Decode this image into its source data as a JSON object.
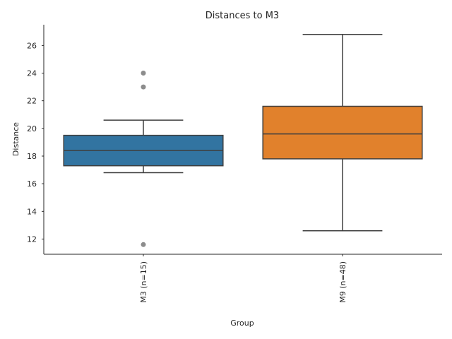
{
  "chart_data": {
    "type": "box",
    "title": "Distances to M3",
    "xlabel": "Group",
    "ylabel": "Distance",
    "ylim": [
      10.9,
      27.5
    ],
    "yticks": [
      12,
      14,
      16,
      18,
      20,
      22,
      24,
      26
    ],
    "grid": false,
    "categories": [
      "M3 (n=15)",
      "M9 (n=48)"
    ],
    "boxes": [
      {
        "category": "M3 (n=15)",
        "q1": 17.3,
        "median": 18.4,
        "q3": 19.5,
        "whisker_low": 16.8,
        "whisker_high": 20.6,
        "outliers": [
          24.0,
          23.0,
          11.6
        ],
        "color": "#3274a1"
      },
      {
        "category": "M9 (n=48)",
        "q1": 17.8,
        "median": 19.6,
        "q3": 21.6,
        "whisker_low": 12.6,
        "whisker_high": 26.8,
        "outliers": [],
        "color": "#e1812c"
      }
    ],
    "line_color": "#3f3f3f",
    "outlier_color": "#8c8c8c"
  }
}
